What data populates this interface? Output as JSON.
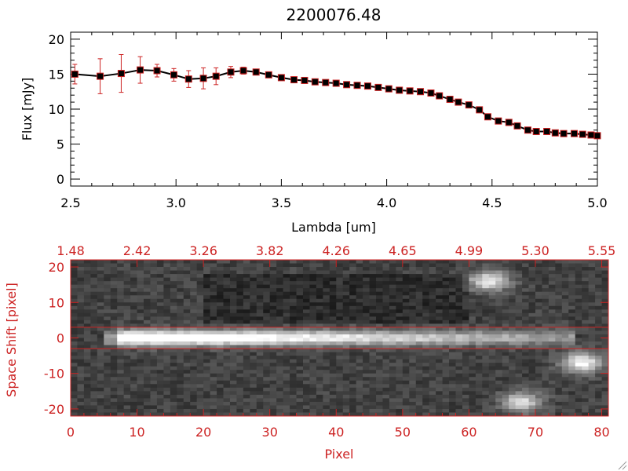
{
  "chart_data": [
    {
      "type": "line",
      "title": "2200076.48",
      "xlabel": "Lambda [um]",
      "ylabel": "Flux [mJy]",
      "xlim": [
        2.5,
        5.0
      ],
      "ylim": [
        -1,
        21
      ],
      "x_ticks": [
        "2.5",
        "3.0",
        "3.5",
        "4.0",
        "4.5",
        "5.0"
      ],
      "y_ticks": [
        "0",
        "5",
        "10",
        "15",
        "20"
      ],
      "marker": "square",
      "colors": {
        "line": "#000000",
        "marker": "#000000",
        "marker_edge": "#cc2222",
        "errorbar": "#cc2222"
      },
      "x": [
        2.52,
        2.64,
        2.74,
        2.83,
        2.91,
        2.99,
        3.06,
        3.13,
        3.19,
        3.26,
        3.32,
        3.38,
        3.44,
        3.5,
        3.56,
        3.61,
        3.66,
        3.71,
        3.76,
        3.81,
        3.86,
        3.91,
        3.96,
        4.01,
        4.06,
        4.11,
        4.16,
        4.21,
        4.25,
        4.3,
        4.34,
        4.39,
        4.44,
        4.48,
        4.53,
        4.58,
        4.62,
        4.67,
        4.71,
        4.76,
        4.8,
        4.84,
        4.89,
        4.93,
        4.97,
        5.0
      ],
      "y": [
        15.0,
        14.7,
        15.1,
        15.6,
        15.5,
        14.9,
        14.3,
        14.4,
        14.7,
        15.3,
        15.5,
        15.3,
        14.9,
        14.5,
        14.2,
        14.1,
        13.9,
        13.8,
        13.7,
        13.5,
        13.4,
        13.3,
        13.1,
        12.9,
        12.7,
        12.6,
        12.5,
        12.3,
        11.9,
        11.4,
        11.0,
        10.6,
        9.9,
        8.9,
        8.3,
        8.1,
        7.6,
        7.0,
        6.8,
        6.8,
        6.6,
        6.5,
        6.5,
        6.4,
        6.3,
        6.2
      ],
      "yerr": [
        1.4,
        2.5,
        2.7,
        1.9,
        0.9,
        0.9,
        1.2,
        1.5,
        1.2,
        0.8,
        0.5,
        0.3,
        0.2,
        0.2,
        0.2,
        0.2,
        0.2,
        0.2,
        0.2,
        0.2,
        0.2,
        0.2,
        0.2,
        0.2,
        0.2,
        0.2,
        0.2,
        0.2,
        0.2,
        0.2,
        0.2,
        0.2,
        0.2,
        0.2,
        0.2,
        0.2,
        0.2,
        0.2,
        0.2,
        0.2,
        0.2,
        0.2,
        0.2,
        0.2,
        0.2,
        0.2
      ]
    },
    {
      "type": "heatmap",
      "xlabel": "Pixel",
      "ylabel": "Space Shift [pixel]",
      "xlim": [
        0,
        81
      ],
      "ylim": [
        -22,
        22
      ],
      "x_ticks": [
        "0",
        "10",
        "20",
        "30",
        "40",
        "50",
        "60",
        "70",
        "80"
      ],
      "y_ticks": [
        "-20",
        "-10",
        "0",
        "10",
        "20"
      ],
      "top_axis_ticks": [
        "1.48",
        "2.42",
        "3.26",
        "3.82",
        "4.26",
        "4.65",
        "4.99",
        "5.30",
        "5.55"
      ],
      "extraction_lines_y": [
        3,
        -3
      ],
      "colors": {
        "frame": "#cc2222",
        "lines": "#cc2222",
        "axis_text": "#cc2222"
      },
      "colormap": "grayscale",
      "bright_regions": [
        {
          "x_range": [
            7,
            76
          ],
          "y": 0,
          "peak_intensity": 0.95,
          "note_fade": "trace fades along x"
        },
        {
          "x": 63,
          "y": 16,
          "intensity": 0.7
        },
        {
          "x": 77,
          "y": -7,
          "intensity": 0.75
        },
        {
          "x": 68,
          "y": -18,
          "intensity": 0.6
        }
      ]
    }
  ]
}
